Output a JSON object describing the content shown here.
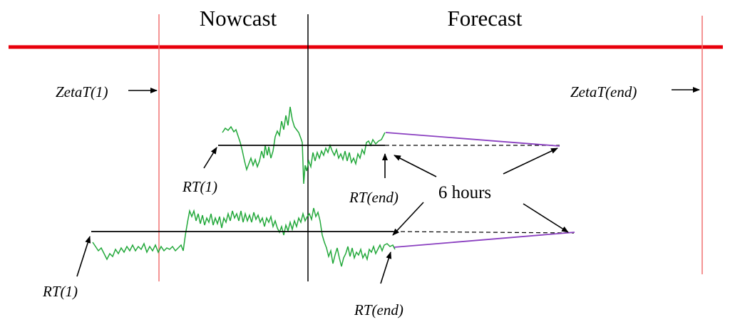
{
  "headers": {
    "nowcast": "Nowcast",
    "forecast": "Forecast"
  },
  "labels": {
    "zeta_start": "ZetaT(1)",
    "zeta_end": "ZetaT(end)",
    "upper_rt_start": "RT(1)",
    "upper_rt_end": "RT(end)",
    "lower_rt_start": "RT(1)",
    "lower_rt_end": "RT(end)",
    "six_hours": "6 hours"
  },
  "colors": {
    "timeline": "#e8000b",
    "boundary": "#f07070",
    "signal": "#22a83a",
    "forecast_line": "#8a3fc0",
    "axis": "#000000"
  }
}
